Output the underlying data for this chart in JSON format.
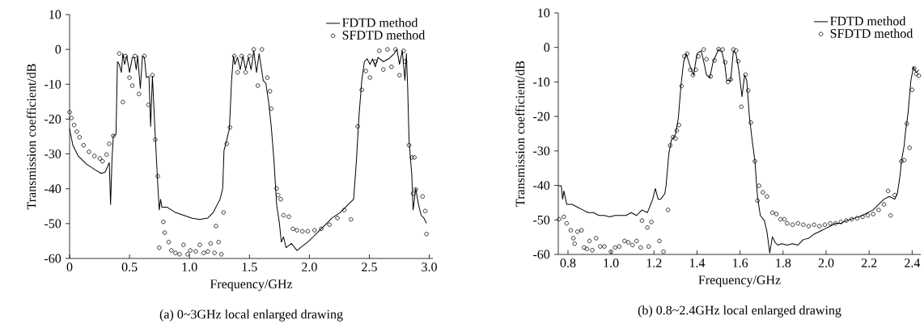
{
  "chart_data": [
    {
      "type": "line",
      "xlabel": "Frequency/GHz",
      "ylabel": "Transmission coefficient/dB",
      "xlim": [
        0,
        3.03
      ],
      "ylim": [
        -60,
        10
      ],
      "xticks": [
        0,
        0.5,
        {
          "value": 1,
          "label": "1.0"
        },
        1.5,
        {
          "value": 2,
          "label": "2.0"
        },
        2.5,
        {
          "value": 3,
          "label": "3.0"
        }
      ],
      "yticks": [
        10,
        0,
        -10,
        -20,
        -30,
        -40,
        -50,
        -60
      ],
      "legend": "top right",
      "annotations": [
        "(a) 0~3GHz local enlarged drawing"
      ],
      "series": [
        {
          "name": "FDTD method",
          "color": "#000000",
          "marker": "none",
          "x": [
            0.0,
            0.027,
            0.072,
            0.14,
            0.207,
            0.264,
            0.297,
            0.331,
            0.342,
            0.354,
            0.365,
            0.387,
            0.392,
            0.399,
            0.414,
            0.432,
            0.444,
            0.459,
            0.477,
            0.5,
            0.523,
            0.541,
            0.556,
            0.568,
            0.59,
            0.608,
            0.624,
            0.64,
            0.662,
            0.676,
            0.691,
            0.714,
            0.736,
            0.748,
            0.759,
            0.77,
            0.815,
            0.883,
            0.95,
            1.018,
            1.086,
            1.153,
            1.198,
            1.232,
            1.255,
            1.277,
            1.288,
            1.311,
            1.333,
            1.351,
            1.367,
            1.378,
            1.401,
            1.423,
            1.446,
            1.468,
            1.491,
            1.514,
            1.536,
            1.559,
            1.581,
            1.615,
            1.637,
            1.66,
            1.682,
            1.705,
            1.727,
            1.75,
            1.766,
            1.784,
            1.806,
            1.851,
            1.896,
            1.941,
            1.986,
            2.032,
            2.077,
            2.122,
            2.189,
            2.257,
            2.324,
            2.369,
            2.392,
            2.414,
            2.437,
            2.459,
            2.482,
            2.505,
            2.527,
            2.55,
            2.572,
            2.617,
            2.662,
            2.707,
            2.73,
            2.752,
            2.775,
            2.797,
            2.809,
            2.82,
            2.831,
            2.854,
            2.865,
            2.887,
            2.91,
            2.932,
            2.955,
            2.977
          ],
          "values": [
            -22.8,
            -27.5,
            -30.6,
            -32.9,
            -34.4,
            -35.6,
            -35.2,
            -32.5,
            -44.5,
            -31.3,
            -24.8,
            -24.4,
            -15.9,
            -3.5,
            -4.3,
            -6.6,
            -1.2,
            -4.3,
            -1.9,
            -6.6,
            -2.3,
            -2.3,
            -5.8,
            -1.9,
            -11.2,
            -1.9,
            -2.3,
            -8.1,
            -7.7,
            -22.1,
            -7.7,
            -24.4,
            -39.1,
            -46.1,
            -43.0,
            -45.3,
            -45.3,
            -46.8,
            -47.6,
            -48.4,
            -48.8,
            -48.4,
            -46.8,
            -44.5,
            -43.0,
            -39.9,
            -29.0,
            -25.9,
            -22.8,
            -8.9,
            -1.9,
            -4.3,
            -2.3,
            -5.8,
            -1.9,
            -5.8,
            -2.3,
            -5.8,
            -0.4,
            -6.6,
            -1.2,
            -8.9,
            -9.7,
            -15.1,
            -22.1,
            -32.1,
            -44.5,
            -49.9,
            -55.3,
            -53.8,
            -56.9,
            -55.7,
            -57.7,
            -56.5,
            -55.3,
            -53.8,
            -52.2,
            -50.7,
            -48.4,
            -46.8,
            -44.5,
            -43.0,
            -32.1,
            -19.0,
            -8.9,
            -3.5,
            -2.7,
            -4.3,
            -2.7,
            -5.0,
            -2.3,
            -3.5,
            -2.7,
            -1.2,
            0.0,
            -4.3,
            -0.4,
            -8.9,
            -1.2,
            -11.2,
            -25.9,
            -36.0,
            -46.1,
            -39.9,
            -44.5,
            -47.6,
            -48.4,
            -49.9
          ]
        },
        {
          "name": "SFDTD method",
          "type": "scatter",
          "color": "#000000",
          "marker": "circle",
          "x": [
            0.0,
            0.016,
            0.038,
            0.061,
            0.083,
            0.117,
            0.162,
            0.207,
            0.252,
            0.275,
            0.309,
            0.331,
            0.365,
            0.414,
            0.444,
            0.466,
            0.5,
            0.523,
            0.545,
            0.579,
            0.624,
            0.658,
            0.691,
            0.714,
            0.736,
            0.748,
            0.782,
            0.793,
            0.827,
            0.849,
            0.883,
            0.917,
            0.95,
            0.984,
            1.007,
            1.052,
            1.086,
            1.119,
            1.153,
            1.176,
            1.209,
            1.221,
            1.243,
            1.266,
            1.284,
            1.311,
            1.338,
            1.374,
            1.401,
            1.435,
            1.468,
            1.502,
            1.536,
            1.57,
            1.604,
            1.649,
            1.671,
            1.682,
            1.727,
            1.739,
            1.761,
            1.784,
            1.829,
            1.863,
            1.896,
            1.941,
            1.986,
            2.043,
            2.099,
            2.167,
            2.234,
            2.291,
            2.347,
            2.403,
            2.437,
            2.471,
            2.505,
            2.55,
            2.583,
            2.617,
            2.651,
            2.685,
            2.718,
            2.752,
            2.786,
            2.797,
            2.831,
            2.854,
            2.865,
            2.876,
            2.887,
            2.944,
            2.966,
            2.977
          ],
          "values": [
            -18.0,
            -19.7,
            -21.7,
            -23.6,
            -25.2,
            -27.5,
            -29.4,
            -30.6,
            -31.3,
            -32.1,
            -30.2,
            -27.1,
            -24.8,
            -1.2,
            -15.1,
            -1.9,
            -8.1,
            -10.4,
            -1.9,
            -12.8,
            -1.9,
            -15.9,
            -7.4,
            -25.9,
            -36.4,
            -56.9,
            -49.5,
            -52.6,
            -55.3,
            -57.7,
            -58.4,
            -58.8,
            -56.1,
            -58.8,
            -57.7,
            -58.0,
            -56.1,
            -58.4,
            -58.0,
            -55.7,
            -58.4,
            -50.7,
            -55.3,
            -58.8,
            -46.8,
            -27.1,
            -22.4,
            -1.9,
            -6.6,
            -1.9,
            -6.6,
            -1.9,
            0.0,
            -10.4,
            0.0,
            -8.1,
            -12.0,
            -17.0,
            -39.9,
            -41.8,
            -43.0,
            -47.6,
            -48.0,
            -51.5,
            -51.9,
            -52.2,
            -52.2,
            -51.9,
            -51.5,
            -50.3,
            -48.4,
            -46.1,
            -48.8,
            -22.1,
            -11.6,
            -6.2,
            -8.1,
            -3.5,
            -0.4,
            -5.8,
            0.0,
            -5.0,
            0.0,
            -7.4,
            -0.4,
            -3.5,
            -27.5,
            -31.0,
            -41.4,
            -31.0,
            -40.2,
            -42.2,
            -46.4,
            -53.0
          ]
        }
      ]
    },
    {
      "type": "line",
      "xlabel": "Frequency/GHz",
      "ylabel": "Transmission coefficient/dB",
      "xlim": [
        0.755,
        2.44
      ],
      "ylim": [
        -60,
        10
      ],
      "xticks": [
        0.8,
        {
          "value": 1,
          "label": "1.0"
        },
        1.2,
        1.4,
        1.6,
        1.8,
        {
          "value": 2,
          "label": "2.0"
        },
        2.2,
        2.4
      ],
      "yticks": [
        10,
        0,
        -10,
        -20,
        -30,
        -40,
        -50,
        -60
      ],
      "legend": "top right",
      "annotations": [
        "(b) 0.8~2.4GHz local enlarged drawing"
      ],
      "series": [
        {
          "name": "FDTD method",
          "color": "#000000",
          "marker": "none",
          "x": [
            0.756,
            0.769,
            0.775,
            0.781,
            0.794,
            0.819,
            0.844,
            0.869,
            0.894,
            0.919,
            0.944,
            0.969,
            0.994,
            1.019,
            1.044,
            1.069,
            1.094,
            1.119,
            1.144,
            1.169,
            1.194,
            1.206,
            1.219,
            1.231,
            1.25,
            1.256,
            1.269,
            1.281,
            1.3,
            1.313,
            1.325,
            1.338,
            1.35,
            1.369,
            1.384,
            1.4,
            1.419,
            1.431,
            1.444,
            1.459,
            1.475,
            1.5,
            1.516,
            1.529,
            1.538,
            1.556,
            1.569,
            1.581,
            1.594,
            1.609,
            1.621,
            1.631,
            1.644,
            1.656,
            1.669,
            1.681,
            1.694,
            1.713,
            1.725,
            1.738,
            1.75,
            1.763,
            1.775,
            1.794,
            1.819,
            1.844,
            1.869,
            1.894,
            1.919,
            1.944,
            1.969,
            1.994,
            2.019,
            2.044,
            2.069,
            2.094,
            2.131,
            2.169,
            2.194,
            2.219,
            2.244,
            2.269,
            2.294,
            2.319,
            2.331,
            2.344,
            2.35,
            2.363,
            2.369,
            2.381,
            2.394,
            2.406,
            2.419,
            2.431
          ],
          "values": [
            -40.1,
            -40.1,
            -44.0,
            -41.6,
            -45.5,
            -45.5,
            -46.3,
            -47.1,
            -47.9,
            -47.9,
            -48.7,
            -48.7,
            -49.1,
            -48.7,
            -48.7,
            -48.7,
            -47.9,
            -48.7,
            -47.1,
            -47.9,
            -44.0,
            -40.9,
            -44.0,
            -44.0,
            -42.4,
            -40.1,
            -30.7,
            -26.8,
            -25.2,
            -20.5,
            -11.2,
            -4.1,
            -1.8,
            -5.7,
            -8.0,
            -1.8,
            -1.0,
            -4.1,
            -8.0,
            -8.8,
            -4.1,
            -0.6,
            -1.4,
            -4.9,
            -9.6,
            -9.6,
            -1.0,
            -1.8,
            -6.5,
            -14.3,
            -8.0,
            -9.6,
            -20.5,
            -26.8,
            -33.0,
            -43.2,
            -48.7,
            -50.2,
            -53.4,
            -59.6,
            -54.9,
            -56.5,
            -57.3,
            -56.9,
            -57.3,
            -56.9,
            -57.3,
            -55.7,
            -55.3,
            -54.1,
            -53.4,
            -52.6,
            -51.8,
            -51.0,
            -51.0,
            -50.2,
            -49.5,
            -48.7,
            -47.9,
            -47.1,
            -45.5,
            -44.0,
            -43.2,
            -44.0,
            -42.4,
            -37.0,
            -33.0,
            -28.4,
            -24.5,
            -19.0,
            -9.6,
            -5.7,
            -7.3,
            -6.5
          ]
        },
        {
          "name": "SFDTD method",
          "type": "scatter",
          "color": "#000000",
          "marker": "circle",
          "x": [
            0.759,
            0.781,
            0.794,
            0.813,
            0.825,
            0.831,
            0.844,
            0.863,
            0.875,
            0.888,
            0.9,
            0.913,
            0.931,
            0.95,
            0.969,
            1.0,
            1.019,
            1.038,
            1.063,
            1.081,
            1.1,
            1.119,
            1.138,
            1.144,
            1.169,
            1.175,
            1.188,
            1.225,
            1.244,
            1.265,
            1.275,
            1.288,
            1.3,
            1.306,
            1.316,
            1.328,
            1.341,
            1.354,
            1.369,
            1.381,
            1.394,
            1.406,
            1.431,
            1.444,
            1.463,
            1.481,
            1.5,
            1.519,
            1.531,
            1.544,
            1.556,
            1.569,
            1.581,
            1.591,
            1.606,
            1.625,
            1.638,
            1.65,
            1.669,
            1.681,
            1.688,
            1.706,
            1.725,
            1.75,
            1.769,
            1.788,
            1.806,
            1.819,
            1.844,
            1.869,
            1.894,
            1.919,
            1.944,
            1.969,
            1.994,
            2.019,
            2.044,
            2.069,
            2.094,
            2.119,
            2.144,
            2.169,
            2.194,
            2.219,
            2.244,
            2.269,
            2.288,
            2.3,
            2.319,
            2.35,
            2.363,
            2.375,
            2.388,
            2.4,
            2.409,
            2.419,
            2.431
          ],
          "values": [
            -49.8,
            -49.1,
            -51.0,
            -53.0,
            -55.3,
            -56.9,
            -53.4,
            -53.0,
            -58.0,
            -58.4,
            -56.1,
            -58.8,
            -55.3,
            -57.7,
            -57.7,
            -59.2,
            -58.0,
            -57.7,
            -56.1,
            -56.5,
            -57.3,
            -56.1,
            -58.0,
            -50.2,
            -52.2,
            -57.7,
            -50.6,
            -56.1,
            -59.2,
            -47.1,
            -28.4,
            -26.0,
            -26.4,
            -24.1,
            -22.5,
            -11.2,
            -2.6,
            -1.8,
            -6.5,
            -8.0,
            -6.5,
            -2.6,
            -0.6,
            -3.4,
            -8.4,
            -3.8,
            -0.5,
            -0.6,
            -4.3,
            -10.0,
            -9.3,
            -0.6,
            -0.9,
            -4.0,
            -17.2,
            -7.9,
            -12.5,
            -21.8,
            -33.0,
            -44.4,
            -40.1,
            -42.0,
            -43.2,
            -47.9,
            -48.3,
            -49.8,
            -49.8,
            -51.0,
            -51.4,
            -51.0,
            -51.4,
            -51.8,
            -51.4,
            -51.8,
            -51.4,
            -51.0,
            -51.0,
            -50.6,
            -50.2,
            -49.8,
            -49.5,
            -49.1,
            -48.7,
            -48.3,
            -47.1,
            -45.5,
            -41.6,
            -48.7,
            -42.8,
            -33.0,
            -32.7,
            -22.1,
            -29.1,
            -12.3,
            -6.1,
            -7.7,
            -8.2
          ]
        }
      ]
    }
  ]
}
